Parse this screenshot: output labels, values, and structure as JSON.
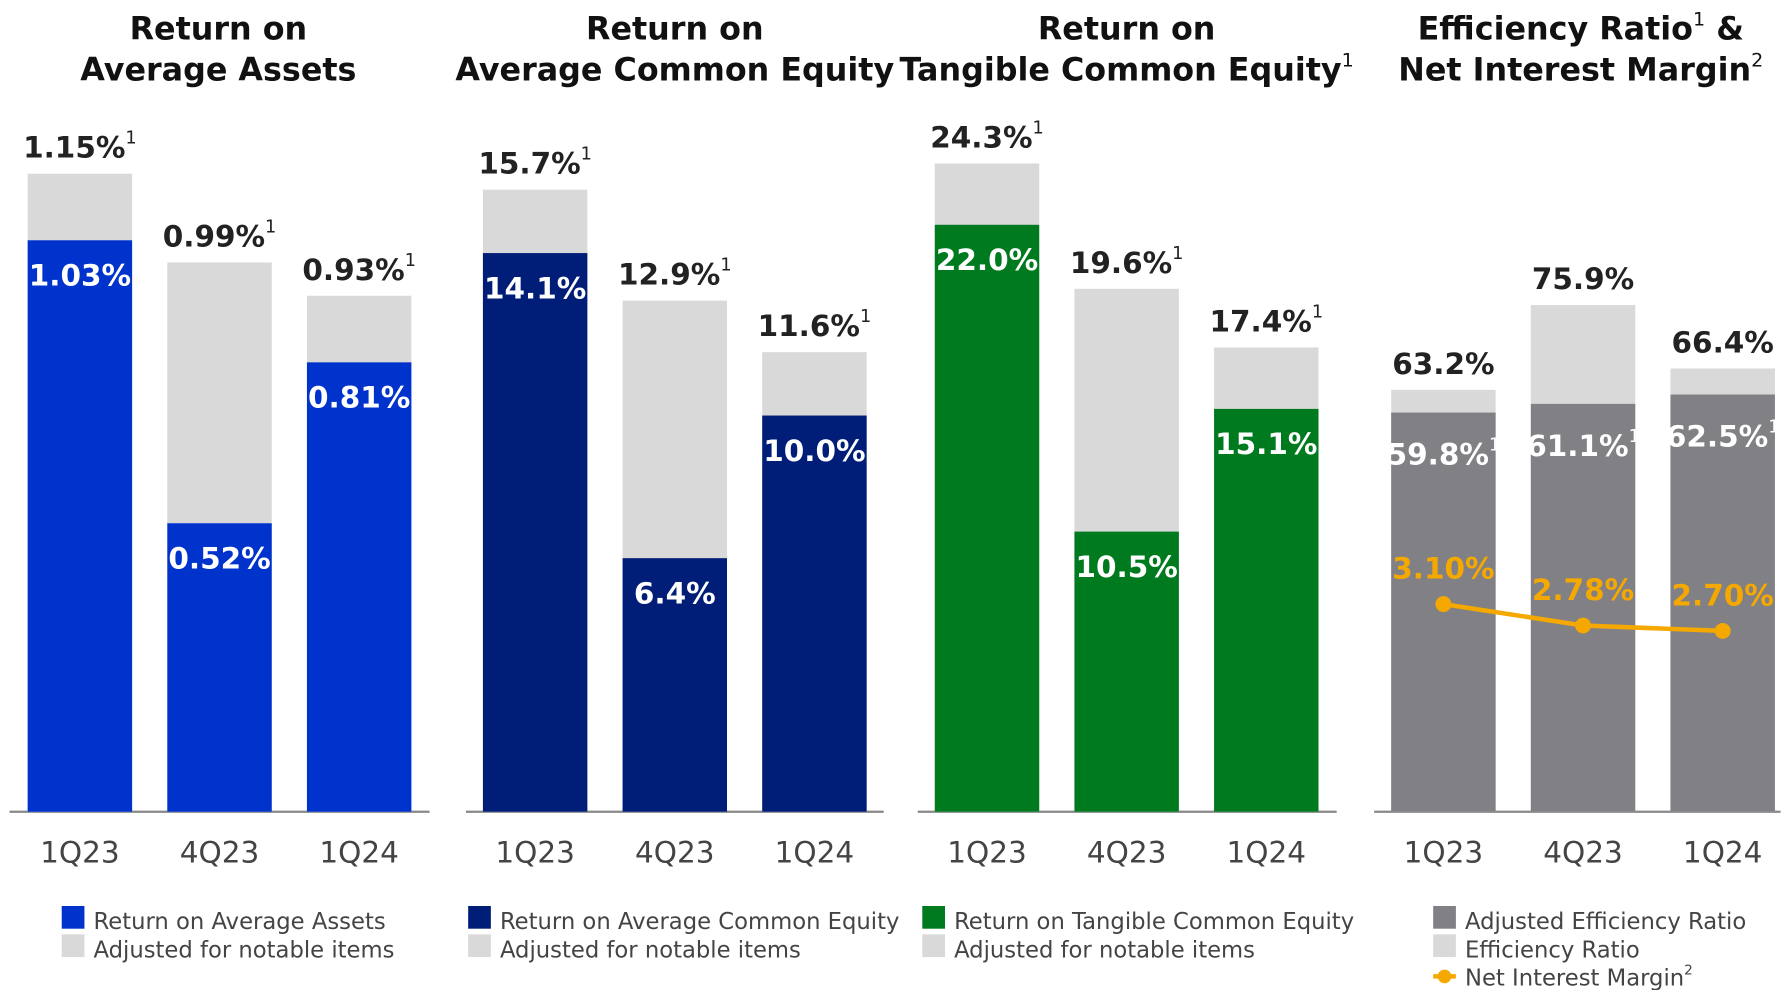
{
  "chart_data": [
    {
      "type": "bar",
      "title_lines": [
        {
          "text": "Return on"
        },
        {
          "text": "Average Assets"
        }
      ],
      "categories": [
        "1Q23",
        "4Q23",
        "1Q24"
      ],
      "series": [
        {
          "name": "Return on Average Assets",
          "color": "#0033cc",
          "values": [
            1.03,
            0.52,
            0.81
          ],
          "value_labels": [
            "1.03%",
            "0.52%",
            "0.81%"
          ]
        },
        {
          "name": "Adjusted for notable items",
          "color": "#d9d9d9",
          "values": [
            1.15,
            0.99,
            0.93
          ],
          "value_labels": [
            "1.15%",
            "0.99%",
            "0.93%"
          ],
          "label_notes": [
            "1",
            "1",
            "1"
          ]
        }
      ]
    },
    {
      "type": "bar",
      "title_lines": [
        {
          "text": "Return on"
        },
        {
          "text": "Average Common Equity"
        }
      ],
      "categories": [
        "1Q23",
        "4Q23",
        "1Q24"
      ],
      "series": [
        {
          "name": "Return on Average Common Equity",
          "color": "#001e78",
          "values": [
            14.1,
            6.4,
            10.0
          ],
          "value_labels": [
            "14.1%",
            "6.4%",
            "10.0%"
          ]
        },
        {
          "name": "Adjusted for notable items",
          "color": "#d9d9d9",
          "values": [
            15.7,
            12.9,
            11.6
          ],
          "value_labels": [
            "15.7%",
            "12.9%",
            "11.6%"
          ],
          "label_notes": [
            "1",
            "1",
            "1"
          ]
        }
      ]
    },
    {
      "type": "bar",
      "title_lines": [
        {
          "text": "Return on"
        },
        {
          "text": "Tangible Common Equity",
          "note": "1"
        }
      ],
      "categories": [
        "1Q23",
        "4Q23",
        "1Q24"
      ],
      "series": [
        {
          "name": "Return on Tangible Common Equity",
          "color": "#007a1e",
          "values": [
            22.0,
            10.5,
            15.1
          ],
          "value_labels": [
            "22.0%",
            "10.5%",
            "15.1%"
          ]
        },
        {
          "name": "Adjusted for notable items",
          "color": "#d9d9d9",
          "values": [
            24.3,
            19.6,
            17.4
          ],
          "value_labels": [
            "24.3%",
            "19.6%",
            "17.4%"
          ],
          "label_notes": [
            "1",
            "1",
            "1"
          ]
        }
      ]
    },
    {
      "type": "bar",
      "title_lines": [
        {
          "text": "Efficiency Ratio",
          "note": "1",
          "suffix": " &"
        },
        {
          "text": "Net Interest Margin",
          "note": "2"
        }
      ],
      "categories": [
        "1Q23",
        "4Q23",
        "1Q24"
      ],
      "series": [
        {
          "name": "Adjusted Efficiency Ratio",
          "color": "#808085",
          "values": [
            59.8,
            61.1,
            62.5
          ],
          "value_labels": [
            "59.8%",
            "61.1%",
            "62.5%"
          ],
          "label_notes": [
            "1",
            "1",
            "1"
          ]
        },
        {
          "name": "Efficiency Ratio",
          "color": "#d9d9d9",
          "values": [
            63.2,
            75.9,
            66.4
          ],
          "value_labels": [
            "63.2%",
            "75.9%",
            "66.4%"
          ]
        },
        {
          "name": "Net Interest Margin",
          "name_note": "2",
          "type": "line",
          "axis": "y2",
          "color": "#f5a800",
          "values": [
            3.1,
            2.78,
            2.7
          ],
          "value_labels": [
            "3.10%",
            "2.78%",
            "2.70%"
          ]
        }
      ]
    }
  ]
}
